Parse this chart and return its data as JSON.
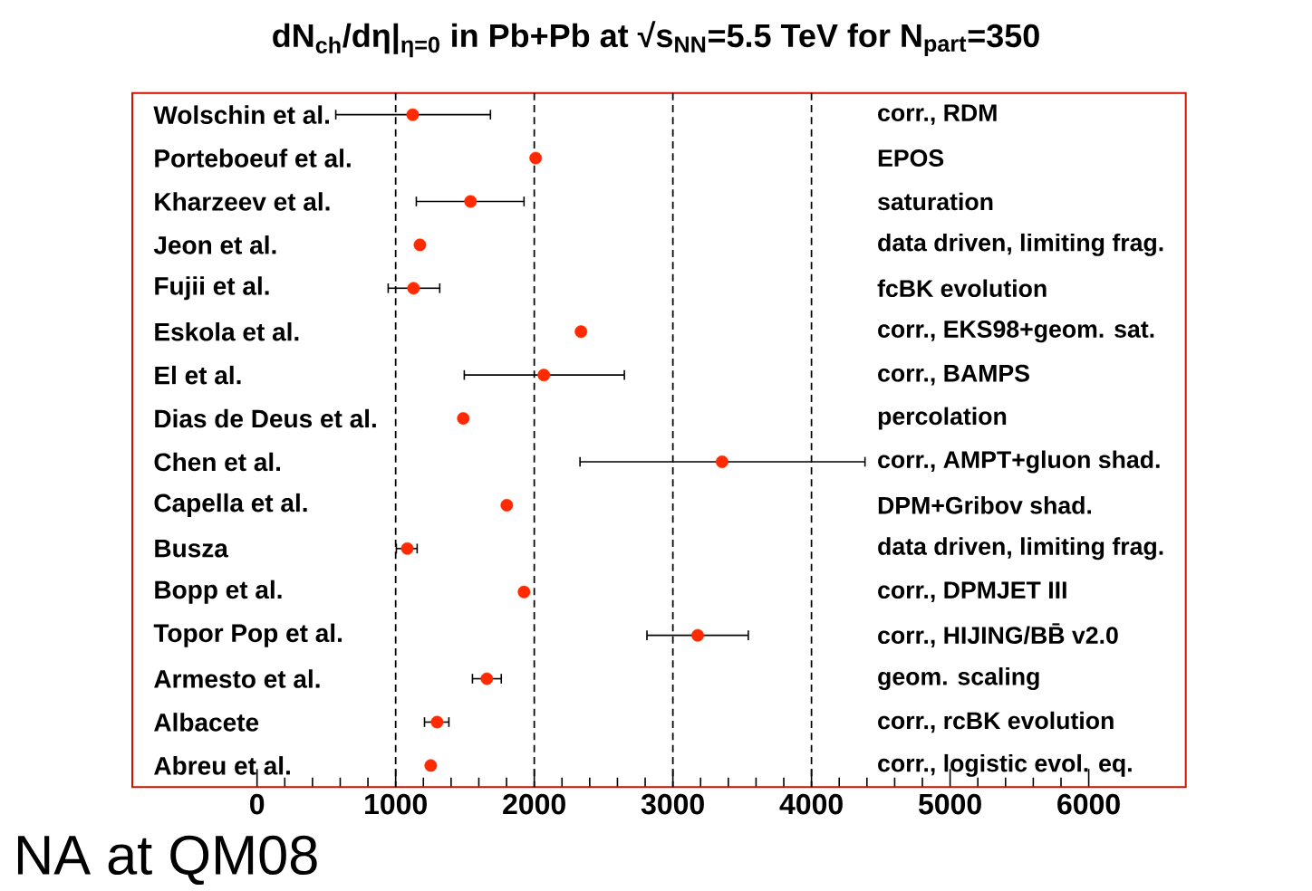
{
  "chart_data": {
    "type": "scatter",
    "orientation": "horizontal",
    "title": "dN$_{ch}$/dη|$_{η=0}$ in Pb+Pb at √s$_{NN}$=5.5 TeV for N$_{part}$=350",
    "categories": [
      "Wolschin et al.",
      "Porteboeuf et al.",
      "Kharzeev et al.",
      "Jeon et al.",
      "Fujii et al.",
      "Eskola et al.",
      "El et al.",
      "Dias de Deus et al.",
      "Chen et al.",
      "Capella et al.",
      "Busza",
      "Bopp et al.",
      "Topor Pop et al.",
      "Armesto et al.",
      "Albacete",
      "Abreu et al."
    ],
    "values": [
      1123,
      2010,
      1540,
      1175,
      1129,
      2337,
      2069,
      1488,
      3355,
      1802,
      1084,
      1926,
      3179,
      1658,
      1299,
      1253
    ],
    "errors": [
      [
        568,
        1684
      ],
      null,
      [
        1149,
        1926
      ],
      null,
      [
        946,
        1318
      ],
      null,
      [
        1495,
        2650
      ],
      null,
      [
        2330,
        4386
      ],
      null,
      [
        1005,
        1155
      ],
      null,
      [
        2813,
        3544
      ],
      [
        1554,
        1762
      ],
      [
        1208,
        1384
      ],
      null
    ],
    "color": "#ff2a00",
    "xlim": [
      -900,
      6700
    ],
    "xticks": [
      0,
      1000,
      2000,
      3000,
      4000,
      5000,
      6000
    ],
    "ref_lines": [
      {
        "axis": "x",
        "value": 1000,
        "line_style": "dashed"
      },
      {
        "axis": "x",
        "value": 2000,
        "line_style": "dashed"
      },
      {
        "axis": "x",
        "value": 3000,
        "line_style": "dashed"
      },
      {
        "axis": "x",
        "value": 4000,
        "line_style": "dashed"
      }
    ],
    "annotations": [
      "corr., RDM",
      "EPOS",
      "saturation",
      "data driven, limiting frag.",
      "fcBK evolution",
      "corr., EKS98+geom. sat.",
      "corr., BAMPS",
      "percolation",
      "corr., AMPT+gluon shad.",
      "DPM+Gribov shad.",
      "data driven, limiting frag.",
      "corr., DPMJET III",
      "corr., HIJING/BB̄ v2.0",
      "geom. scaling",
      "corr., rcBK evolution",
      "corr., logistic evol. eq.",
      "NA at QM08"
    ]
  }
}
